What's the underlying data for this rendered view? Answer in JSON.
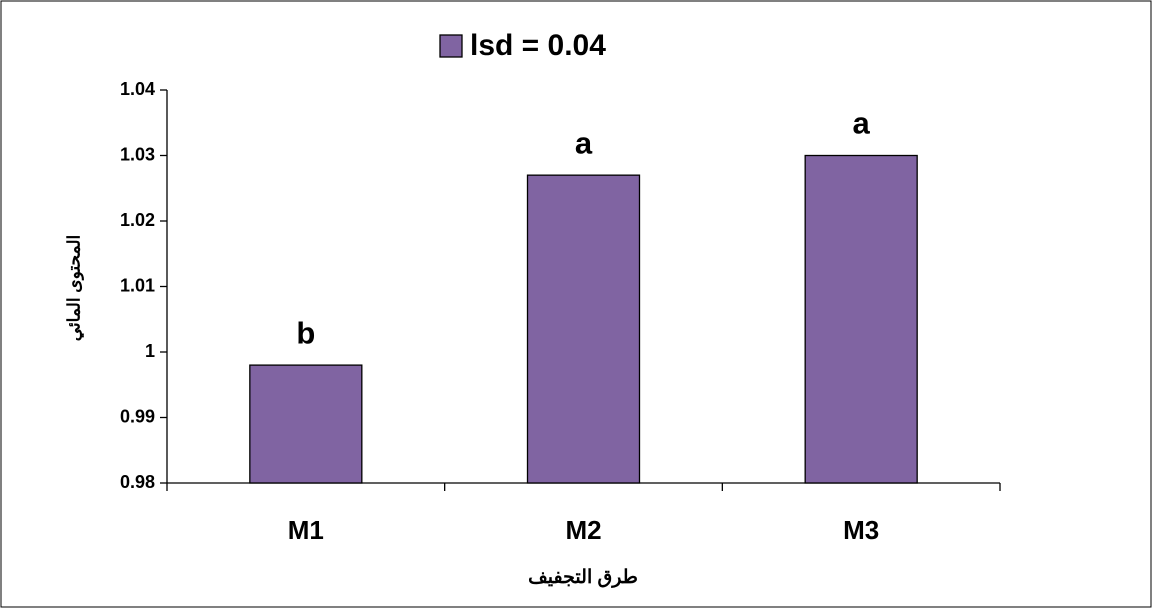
{
  "chart_data": {
    "type": "bar",
    "categories": [
      "M1",
      "M2",
      "M3"
    ],
    "series": [
      {
        "name": "lsd = 0.04",
        "color": "#8064a2",
        "values": [
          0.998,
          1.027,
          1.03
        ]
      }
    ],
    "annotations": [
      "b",
      "a",
      "a"
    ],
    "xlabel": "طرق التجفيف",
    "ylabel": "المحتوى المائي",
    "ylim": [
      0.98,
      1.04
    ],
    "yticks": [
      0.98,
      0.99,
      1,
      1.01,
      1.02,
      1.03,
      1.04
    ],
    "legend": "top",
    "grid": false
  }
}
